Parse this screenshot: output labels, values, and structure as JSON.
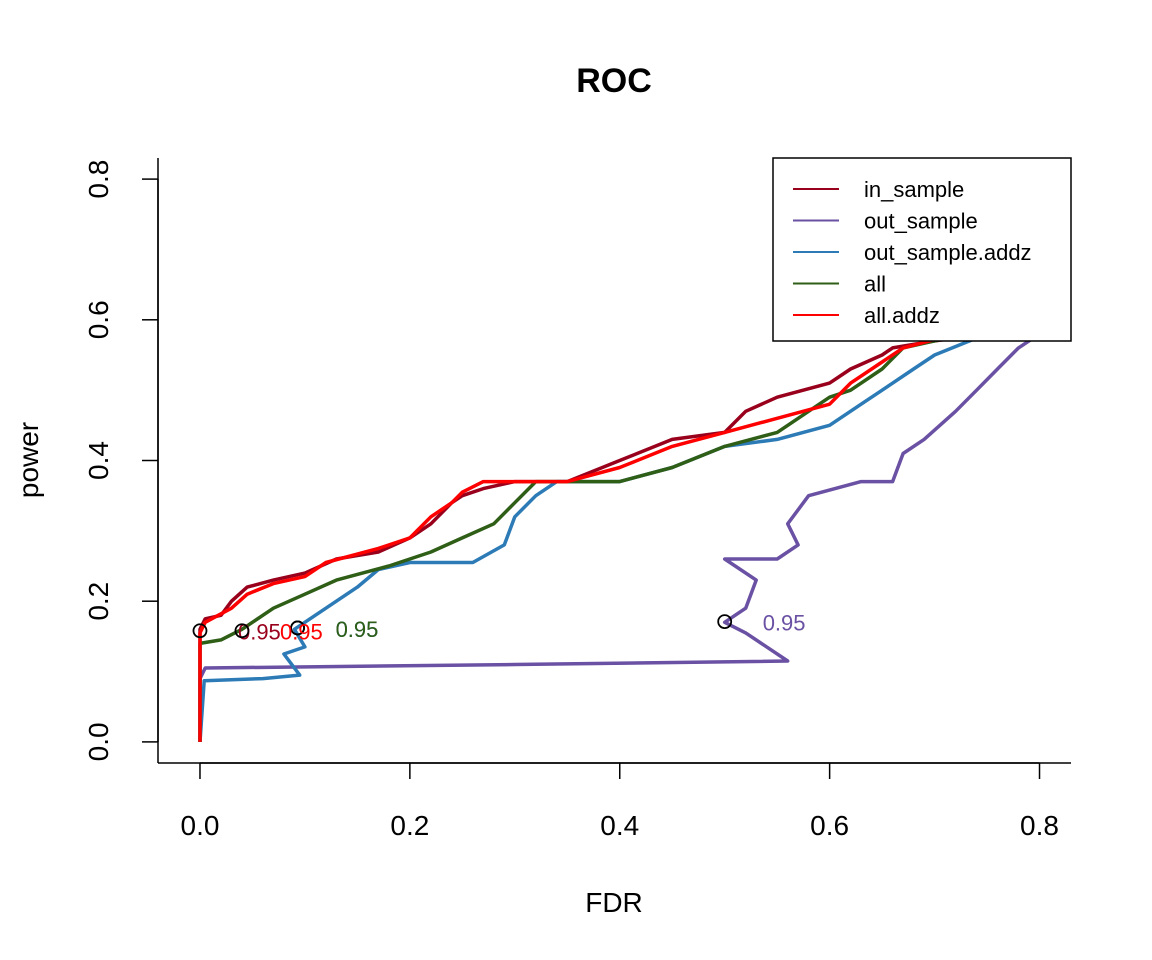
{
  "chart_data": {
    "type": "line",
    "title": "ROC",
    "xlabel": "FDR",
    "ylabel": "power",
    "xlim": [
      -0.04,
      0.83
    ],
    "ylim": [
      -0.03,
      0.83
    ],
    "x_ticks": [
      0.0,
      0.2,
      0.4,
      0.6,
      0.8
    ],
    "y_ticks": [
      0.0,
      0.2,
      0.4,
      0.6,
      0.8
    ],
    "x_tick_labels": [
      "0.0",
      "0.2",
      "0.4",
      "0.6",
      "0.8"
    ],
    "y_tick_labels": [
      "0.0",
      "0.2",
      "0.4",
      "0.6",
      "0.8"
    ],
    "legend_position": "top-right",
    "series": [
      {
        "name": "in_sample",
        "color": "#99001C",
        "points": [
          [
            0.0,
            0.0
          ],
          [
            0.0,
            0.16
          ],
          [
            0.005,
            0.175
          ],
          [
            0.02,
            0.18
          ],
          [
            0.03,
            0.2
          ],
          [
            0.045,
            0.22
          ],
          [
            0.07,
            0.23
          ],
          [
            0.1,
            0.24
          ],
          [
            0.13,
            0.26
          ],
          [
            0.17,
            0.27
          ],
          [
            0.2,
            0.29
          ],
          [
            0.22,
            0.31
          ],
          [
            0.24,
            0.34
          ],
          [
            0.25,
            0.35
          ],
          [
            0.27,
            0.36
          ],
          [
            0.3,
            0.37
          ],
          [
            0.35,
            0.37
          ],
          [
            0.4,
            0.4
          ],
          [
            0.45,
            0.43
          ],
          [
            0.5,
            0.44
          ],
          [
            0.52,
            0.47
          ],
          [
            0.55,
            0.49
          ],
          [
            0.6,
            0.51
          ],
          [
            0.62,
            0.53
          ],
          [
            0.65,
            0.55
          ],
          [
            0.66,
            0.56
          ],
          [
            0.7,
            0.57
          ],
          [
            0.75,
            0.58
          ],
          [
            0.8,
            0.6
          ]
        ],
        "marker": {
          "x": 0.0,
          "y": 0.158,
          "label": "0.95"
        }
      },
      {
        "name": "out_sample",
        "color": "#6A51A3",
        "points": [
          [
            0.0,
            0.0
          ],
          [
            0.0,
            0.09
          ],
          [
            0.005,
            0.105
          ],
          [
            0.3,
            0.11
          ],
          [
            0.56,
            0.115
          ],
          [
            0.52,
            0.155
          ],
          [
            0.5,
            0.17
          ],
          [
            0.52,
            0.19
          ],
          [
            0.53,
            0.23
          ],
          [
            0.5,
            0.26
          ],
          [
            0.55,
            0.26
          ],
          [
            0.57,
            0.28
          ],
          [
            0.56,
            0.31
          ],
          [
            0.58,
            0.35
          ],
          [
            0.63,
            0.37
          ],
          [
            0.66,
            0.37
          ],
          [
            0.67,
            0.41
          ],
          [
            0.69,
            0.43
          ],
          [
            0.72,
            0.47
          ],
          [
            0.74,
            0.5
          ],
          [
            0.76,
            0.53
          ],
          [
            0.78,
            0.56
          ],
          [
            0.8,
            0.58
          ]
        ],
        "marker": {
          "x": 0.5,
          "y": 0.171,
          "label": "0.95"
        }
      },
      {
        "name": "out_sample.addz",
        "color": "#2C7BB6",
        "points": [
          [
            0.0,
            0.0
          ],
          [
            0.004,
            0.087
          ],
          [
            0.06,
            0.09
          ],
          [
            0.095,
            0.095
          ],
          [
            0.08,
            0.125
          ],
          [
            0.1,
            0.135
          ],
          [
            0.09,
            0.16
          ],
          [
            0.12,
            0.19
          ],
          [
            0.15,
            0.22
          ],
          [
            0.17,
            0.245
          ],
          [
            0.2,
            0.255
          ],
          [
            0.26,
            0.255
          ],
          [
            0.29,
            0.28
          ],
          [
            0.3,
            0.32
          ],
          [
            0.32,
            0.35
          ],
          [
            0.34,
            0.37
          ],
          [
            0.4,
            0.37
          ],
          [
            0.45,
            0.39
          ],
          [
            0.5,
            0.42
          ],
          [
            0.55,
            0.43
          ],
          [
            0.6,
            0.45
          ],
          [
            0.63,
            0.48
          ],
          [
            0.65,
            0.5
          ],
          [
            0.68,
            0.53
          ],
          [
            0.7,
            0.55
          ],
          [
            0.75,
            0.58
          ]
        ],
        "marker": {
          "x": 0.093,
          "y": 0.162,
          "label": "0.95"
        }
      },
      {
        "name": "all",
        "color": "#2F5E17",
        "points": [
          [
            0.0,
            0.0
          ],
          [
            0.0,
            0.14
          ],
          [
            0.02,
            0.145
          ],
          [
            0.04,
            0.16
          ],
          [
            0.05,
            0.17
          ],
          [
            0.07,
            0.19
          ],
          [
            0.1,
            0.21
          ],
          [
            0.13,
            0.23
          ],
          [
            0.18,
            0.25
          ],
          [
            0.22,
            0.27
          ],
          [
            0.25,
            0.29
          ],
          [
            0.28,
            0.31
          ],
          [
            0.3,
            0.34
          ],
          [
            0.32,
            0.37
          ],
          [
            0.4,
            0.37
          ],
          [
            0.45,
            0.39
          ],
          [
            0.5,
            0.42
          ],
          [
            0.55,
            0.44
          ],
          [
            0.58,
            0.47
          ],
          [
            0.6,
            0.49
          ],
          [
            0.62,
            0.5
          ],
          [
            0.65,
            0.53
          ],
          [
            0.67,
            0.56
          ],
          [
            0.7,
            0.57
          ],
          [
            0.8,
            0.6
          ]
        ],
        "marker": {
          "x": 0.093,
          "y": 0.162,
          "label": "0.95"
        }
      },
      {
        "name": "all.addz",
        "color": "#FF0000",
        "points": [
          [
            0.0,
            0.0
          ],
          [
            0.0,
            0.155
          ],
          [
            0.005,
            0.17
          ],
          [
            0.03,
            0.19
          ],
          [
            0.045,
            0.21
          ],
          [
            0.07,
            0.225
          ],
          [
            0.1,
            0.235
          ],
          [
            0.12,
            0.255
          ],
          [
            0.17,
            0.275
          ],
          [
            0.2,
            0.29
          ],
          [
            0.22,
            0.32
          ],
          [
            0.24,
            0.34
          ],
          [
            0.25,
            0.355
          ],
          [
            0.27,
            0.37
          ],
          [
            0.35,
            0.37
          ],
          [
            0.4,
            0.39
          ],
          [
            0.45,
            0.42
          ],
          [
            0.5,
            0.44
          ],
          [
            0.55,
            0.46
          ],
          [
            0.6,
            0.48
          ],
          [
            0.62,
            0.51
          ],
          [
            0.65,
            0.54
          ],
          [
            0.67,
            0.56
          ],
          [
            0.72,
            0.58
          ],
          [
            0.8,
            0.6
          ]
        ],
        "marker": {
          "x": 0.04,
          "y": 0.158,
          "label": "0.95"
        }
      }
    ]
  }
}
